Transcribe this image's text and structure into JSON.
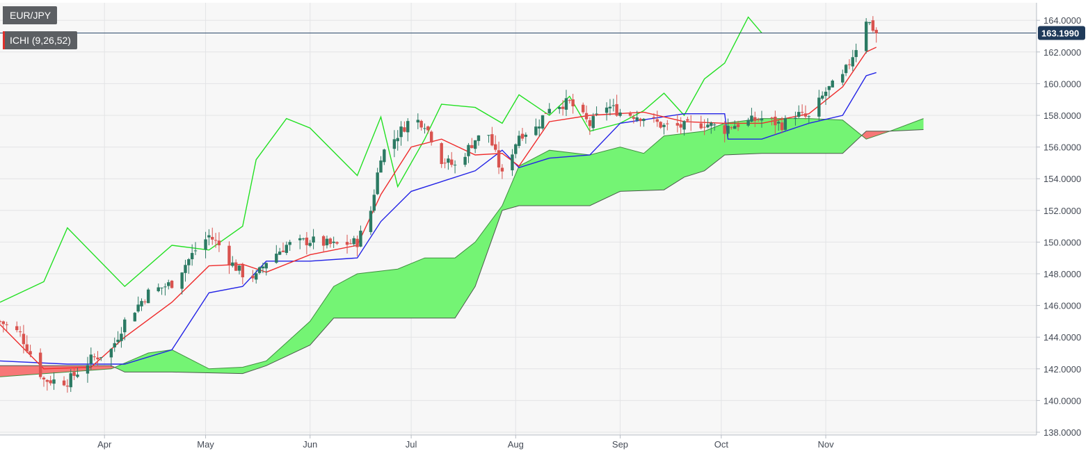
{
  "legend": {
    "pair": "EUR/JPY",
    "indicator": "ICHI (9,26,52)"
  },
  "colors": {
    "background": "#f7f7f7",
    "grid": "#e3e4e6",
    "bull_candle": "#2b7a63",
    "bear_candle": "#d9534f",
    "tenkan": "#ef2b2b",
    "kijun": "#2323e6",
    "chikou": "#22e022",
    "cloud_bull": "#74f474",
    "cloud_bear": "#f77777",
    "last_price_line": "#2c4a6b",
    "price_tag": "#1f3a5a"
  },
  "chart_data": {
    "type": "candlestick",
    "title": "",
    "xlabel": "",
    "ylabel": "",
    "ylim": [
      138,
      165
    ],
    "y_ticks": [
      "138.0000",
      "140.0000",
      "142.0000",
      "144.0000",
      "146.0000",
      "148.0000",
      "150.0000",
      "152.0000",
      "154.0000",
      "156.0000",
      "158.0000",
      "160.0000",
      "162.0000",
      "164.0000"
    ],
    "x_month_labels": [
      "Apr",
      "May",
      "Jun",
      "Jul",
      "Aug",
      "Sep",
      "Oct",
      "Nov"
    ],
    "last_price": "163.1990",
    "grid": true,
    "legend_position": "top-left",
    "series": [
      {
        "name": "Price",
        "points": [
          [
            "Mar 1",
            145.0
          ],
          [
            "Mar 7",
            144.2
          ],
          [
            "Mar 14",
            141.3
          ],
          [
            "Mar 21",
            141.2
          ],
          [
            "Mar 28",
            142.6
          ],
          [
            "Apr 3",
            143.2
          ],
          [
            "Apr 7",
            145.0
          ],
          [
            "Apr 14",
            146.8
          ],
          [
            "Apr 21",
            147.4
          ],
          [
            "Apr 28",
            149.5
          ],
          [
            "May 2",
            150.4
          ],
          [
            "May 5",
            149.8
          ],
          [
            "May 9",
            148.6
          ],
          [
            "May 12",
            148.0
          ],
          [
            "May 16",
            147.8
          ],
          [
            "May 19",
            148.8
          ],
          [
            "May 25",
            149.8
          ],
          [
            "Jun 1",
            150.1
          ],
          [
            "Jun 8",
            149.8
          ],
          [
            "Jun 15",
            150.0
          ],
          [
            "Jun 19",
            152.0
          ],
          [
            "Jun 22",
            155.5
          ],
          [
            "Jun 27",
            156.8
          ],
          [
            "Jul 1",
            157.8
          ],
          [
            "Jul 5",
            157.5
          ],
          [
            "Jul 10",
            155.2
          ],
          [
            "Jul 14",
            154.8
          ],
          [
            "Jul 20",
            156.5
          ],
          [
            "Jul 24",
            156.8
          ],
          [
            "Jul 28",
            154.2
          ],
          [
            "Aug 2",
            156.8
          ],
          [
            "Aug 7",
            157.2
          ],
          [
            "Aug 11",
            158.6
          ],
          [
            "Aug 17",
            158.8
          ],
          [
            "Aug 23",
            157.4
          ],
          [
            "Aug 28",
            158.6
          ],
          [
            "Sep 1",
            158.2
          ],
          [
            "Sep 8",
            157.9
          ],
          [
            "Sep 14",
            157.3
          ],
          [
            "Sep 20",
            157.3
          ],
          [
            "Sep 26",
            157.5
          ],
          [
            "Oct 2",
            157.1
          ],
          [
            "Oct 3",
            157.3
          ],
          [
            "Oct 9",
            157.6
          ],
          [
            "Oct 13",
            157.8
          ],
          [
            "Oct 19",
            157.4
          ],
          [
            "Oct 23",
            158.1
          ],
          [
            "Oct 27",
            157.8
          ],
          [
            "Nov 1",
            159.5
          ],
          [
            "Nov 6",
            160.4
          ],
          [
            "Nov 10",
            162.3
          ],
          [
            "Nov 13",
            164.1
          ],
          [
            "Nov 16",
            163.2
          ]
        ]
      },
      {
        "name": "Tenkan",
        "points": [
          [
            "Mar 1",
            144.8
          ],
          [
            "Mar 14",
            142.0
          ],
          [
            "Mar 28",
            142.1
          ],
          [
            "Apr 7",
            144.0
          ],
          [
            "Apr 21",
            146.2
          ],
          [
            "May 2",
            148.5
          ],
          [
            "May 12",
            148.6
          ],
          [
            "May 19",
            148.1
          ],
          [
            "Jun 1",
            149.2
          ],
          [
            "Jun 15",
            149.8
          ],
          [
            "Jun 22",
            153.0
          ],
          [
            "Jul 1",
            156.0
          ],
          [
            "Jul 10",
            156.5
          ],
          [
            "Jul 20",
            155.5
          ],
          [
            "Jul 28",
            155.6
          ],
          [
            "Aug 2",
            154.8
          ],
          [
            "Aug 11",
            157.6
          ],
          [
            "Aug 23",
            158.0
          ],
          [
            "Sep 8",
            158.2
          ],
          [
            "Sep 20",
            157.6
          ],
          [
            "Oct 2",
            157.5
          ],
          [
            "Oct 13",
            157.5
          ],
          [
            "Oct 27",
            158.1
          ],
          [
            "Nov 6",
            159.8
          ],
          [
            "Nov 13",
            162.0
          ],
          [
            "Nov 16",
            162.3
          ]
        ]
      },
      {
        "name": "Kijun",
        "points": [
          [
            "Mar 1",
            142.5
          ],
          [
            "Mar 21",
            142.3
          ],
          [
            "Apr 7",
            142.3
          ],
          [
            "Apr 21",
            143.2
          ],
          [
            "May 2",
            146.8
          ],
          [
            "May 12",
            147.2
          ],
          [
            "May 19",
            148.8
          ],
          [
            "Jun 1",
            148.8
          ],
          [
            "Jun 15",
            149.0
          ],
          [
            "Jun 22",
            151.3
          ],
          [
            "Jul 1",
            153.2
          ],
          [
            "Jul 20",
            154.5
          ],
          [
            "Jul 28",
            155.8
          ],
          [
            "Aug 2",
            154.7
          ],
          [
            "Aug 11",
            155.3
          ],
          [
            "Aug 23",
            155.5
          ],
          [
            "Sep 1",
            157.5
          ],
          [
            "Sep 20",
            158.1
          ],
          [
            "Oct 2",
            158.1
          ],
          [
            "Oct 3",
            156.5
          ],
          [
            "Oct 13",
            156.5
          ],
          [
            "Oct 27",
            157.5
          ],
          [
            "Nov 6",
            158.0
          ],
          [
            "Nov 13",
            160.5
          ],
          [
            "Nov 16",
            160.7
          ]
        ]
      },
      {
        "name": "Chikou",
        "points": [
          [
            "Mar 1",
            146.2
          ],
          [
            "Mar 14",
            147.5
          ],
          [
            "Mar 21",
            150.9
          ],
          [
            "Apr 7",
            147.2
          ],
          [
            "Apr 21",
            149.8
          ],
          [
            "May 2",
            149.5
          ],
          [
            "May 12",
            151.0
          ],
          [
            "May 16",
            155.2
          ],
          [
            "May 25",
            157.8
          ],
          [
            "Jun 1",
            157.2
          ],
          [
            "Jun 15",
            154.2
          ],
          [
            "Jun 22",
            157.9
          ],
          [
            "Jun 27",
            153.5
          ],
          [
            "Jul 5",
            156.5
          ],
          [
            "Jul 10",
            158.7
          ],
          [
            "Jul 20",
            158.5
          ],
          [
            "Jul 28",
            157.5
          ],
          [
            "Aug 2",
            159.3
          ],
          [
            "Aug 11",
            158.0
          ],
          [
            "Aug 17",
            159.2
          ],
          [
            "Aug 23",
            157.0
          ],
          [
            "Sep 1",
            157.5
          ],
          [
            "Sep 8",
            158.3
          ],
          [
            "Sep 14",
            159.4
          ],
          [
            "Sep 20",
            158.0
          ],
          [
            "Sep 26",
            160.3
          ],
          [
            "Oct 2",
            161.3
          ],
          [
            "Oct 9",
            164.2
          ],
          [
            "Oct 13",
            163.2
          ]
        ]
      },
      {
        "name": "Senkou A",
        "points": [
          [
            "Mar 1",
            141.5
          ],
          [
            "Apr 3",
            142.0
          ],
          [
            "Apr 14",
            143.0
          ],
          [
            "Apr 21",
            143.2
          ],
          [
            "May 2",
            142.0
          ],
          [
            "May 12",
            142.1
          ],
          [
            "May 19",
            142.5
          ],
          [
            "Jun 1",
            145.0
          ],
          [
            "Jun 8",
            147.2
          ],
          [
            "Jun 15",
            148.0
          ],
          [
            "Jun 27",
            148.3
          ],
          [
            "Jul 5",
            149.0
          ],
          [
            "Jul 14",
            149.0
          ],
          [
            "Jul 20",
            150.0
          ],
          [
            "Jul 28",
            152.3
          ],
          [
            "Aug 2",
            154.8
          ],
          [
            "Aug 11",
            155.8
          ],
          [
            "Aug 23",
            155.5
          ],
          [
            "Sep 1",
            156.0
          ],
          [
            "Sep 8",
            155.6
          ],
          [
            "Sep 14",
            156.7
          ],
          [
            "Sep 26",
            157.0
          ],
          [
            "Oct 2",
            157.5
          ],
          [
            "Oct 13",
            157.8
          ],
          [
            "Oct 27",
            157.8
          ],
          [
            "Nov 6",
            157.7
          ],
          [
            "Nov 13",
            156.5
          ],
          [
            "Nov 20",
            157.0
          ],
          [
            "Nov 30",
            157.8
          ]
        ]
      },
      {
        "name": "Senkou B",
        "points": [
          [
            "Mar 1",
            142.2
          ],
          [
            "Apr 3",
            142.2
          ],
          [
            "Apr 7",
            141.8
          ],
          [
            "Apr 21",
            141.8
          ],
          [
            "May 12",
            141.7
          ],
          [
            "May 19",
            142.2
          ],
          [
            "Jun 1",
            143.5
          ],
          [
            "Jun 8",
            145.2
          ],
          [
            "Jun 15",
            145.2
          ],
          [
            "Jul 14",
            145.2
          ],
          [
            "Jul 20",
            147.2
          ],
          [
            "Jul 28",
            152.0
          ],
          [
            "Aug 2",
            152.3
          ],
          [
            "Aug 23",
            152.3
          ],
          [
            "Sep 1",
            153.2
          ],
          [
            "Sep 14",
            153.3
          ],
          [
            "Sep 20",
            154.1
          ],
          [
            "Sep 26",
            154.5
          ],
          [
            "Oct 2",
            155.5
          ],
          [
            "Oct 13",
            155.6
          ],
          [
            "Oct 27",
            155.6
          ],
          [
            "Nov 6",
            155.6
          ],
          [
            "Nov 13",
            157.0
          ],
          [
            "Nov 20",
            157.0
          ],
          [
            "Nov 30",
            157.1
          ]
        ]
      }
    ]
  }
}
